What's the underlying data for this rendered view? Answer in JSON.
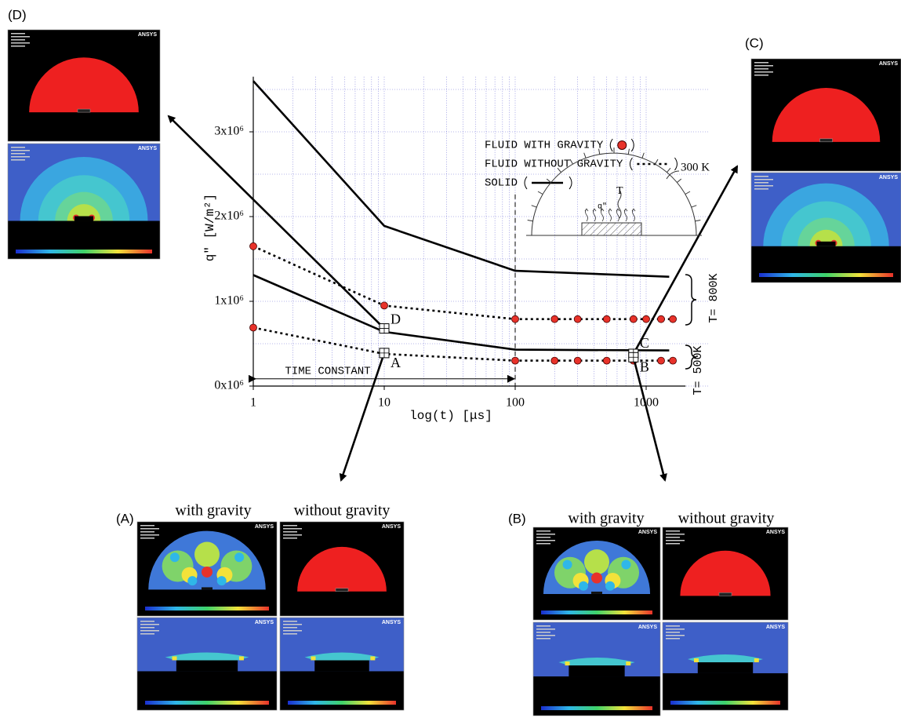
{
  "chart_data": {
    "type": "line",
    "y_label": "q\" [W/m²]",
    "x_label": "log(t) [μs]",
    "xlim": [
      1,
      2000
    ],
    "xticks": [
      1,
      10,
      100,
      1000
    ],
    "x_log": true,
    "x_minor_ticks": [
      2,
      3,
      4,
      5,
      6,
      7,
      8,
      9,
      20,
      30,
      40,
      50,
      60,
      70,
      80,
      90,
      200,
      300,
      400,
      500,
      600,
      700,
      800,
      900
    ],
    "ylim": [
      0,
      3650000
    ],
    "yticks": [
      {
        "value": 0,
        "label": "0x10⁶"
      },
      {
        "value": 1000000,
        "label": "1x10⁶"
      },
      {
        "value": 2000000,
        "label": "2x10⁶"
      },
      {
        "value": 3000000,
        "label": "3x10⁶"
      }
    ],
    "y_minor_ticks": [
      500000,
      1500000,
      2500000,
      3500000
    ],
    "grid": true,
    "grid_color": "#6b6bd6",
    "legend": "upper right",
    "vline_x": 100,
    "series": [
      {
        "name": "FLUID WITH GRAVITY",
        "style": "dots",
        "color": "#e8322a",
        "x": [
          1,
          10,
          100,
          200,
          300,
          500,
          800,
          1000,
          1300,
          1600,
          1,
          100,
          200,
          300,
          500,
          800,
          1300,
          1600
        ],
        "values": [
          1650000,
          950000,
          790000,
          790000,
          790000,
          790000,
          790000,
          790000,
          790000,
          790000,
          690000,
          300000,
          300000,
          300000,
          300000,
          300000,
          300000,
          300000
        ]
      },
      {
        "name": "FLUID WITHOUT GRAVITY",
        "style": "dotted",
        "color": "#000000",
        "x": [
          1,
          10,
          100,
          1500,
          null,
          1,
          10,
          100,
          1500
        ],
        "values": [
          1650000,
          950000,
          790000,
          790000,
          null,
          690000,
          380000,
          300000,
          300000
        ]
      },
      {
        "name": "SOLID",
        "style": "solid",
        "color": "#000000",
        "x": [
          1,
          10,
          100,
          1500,
          null,
          1,
          10,
          100,
          1500
        ],
        "values": [
          3600000,
          1890000,
          1360000,
          1290000,
          null,
          1310000,
          640000,
          430000,
          420000
        ]
      }
    ],
    "markers": [
      {
        "label": "D",
        "x": 10,
        "y": 680000
      },
      {
        "label": "A",
        "x": 10,
        "y": 390000
      },
      {
        "label": "C",
        "x": 800,
        "y": 380000
      },
      {
        "label": "B",
        "x": 800,
        "y": 340000
      }
    ],
    "time_constant": {
      "text": "TIME CONSTANT",
      "x": [
        1,
        100
      ],
      "y": 30000
    },
    "temperatures": [
      "T= 800K",
      "T= 500K"
    ],
    "inset_labels": [
      "300 K",
      "q\"",
      "T"
    ]
  },
  "panels": {
    "logo": "ANSYS",
    "labels": [
      "(D)",
      "(C)",
      "(A)",
      "(B)"
    ],
    "captions": [
      "with gravity",
      "without gravity",
      "with gravity",
      "without gravity"
    ]
  }
}
